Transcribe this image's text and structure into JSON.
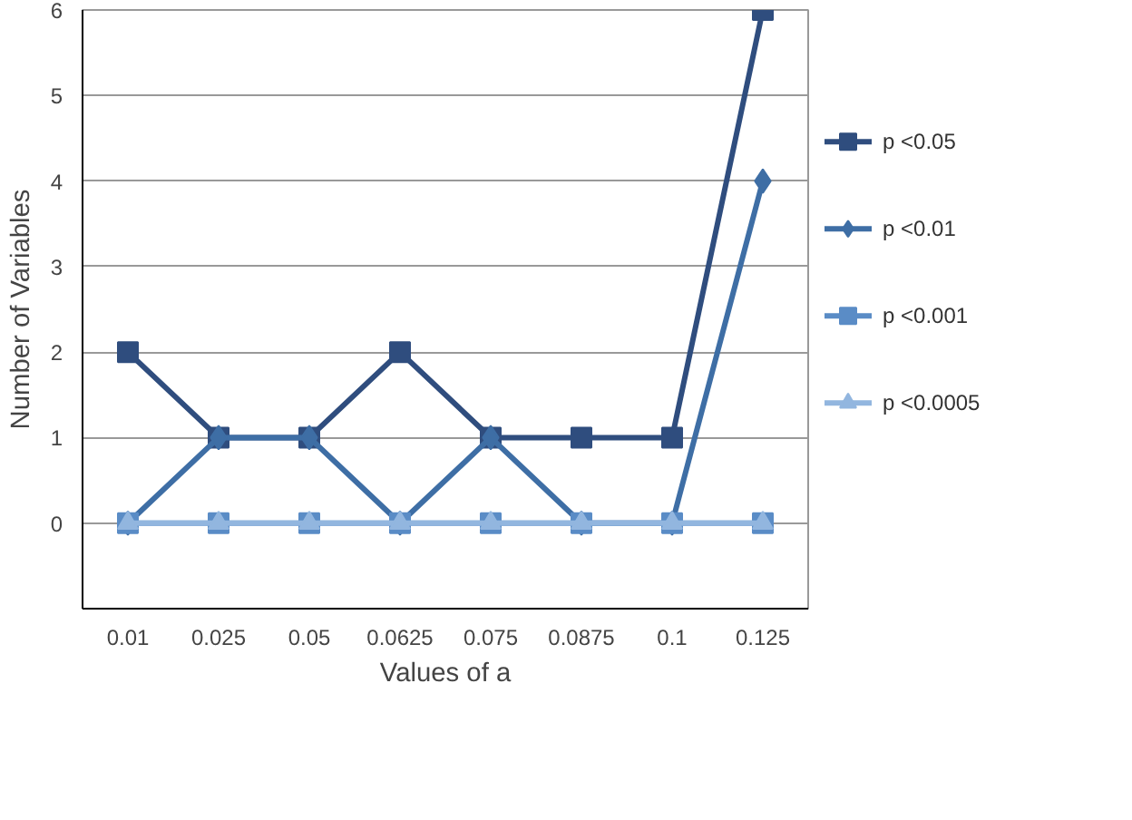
{
  "chart_data": {
    "type": "line",
    "xlabel": "Values of a",
    "ylabel": "Number of Variables",
    "categories": [
      "0.01",
      "0.025",
      "0.05",
      "0.0625",
      "0.075",
      "0.0875",
      "0.1",
      "0.125"
    ],
    "series": [
      {
        "name": "p <0.05",
        "color": "#2f4d7e",
        "marker": "square",
        "values": [
          2,
          1,
          1,
          2,
          1,
          1,
          1,
          6
        ]
      },
      {
        "name": "p <0.01",
        "color": "#3e6ea5",
        "marker": "diamond",
        "values": [
          0,
          1,
          1,
          0,
          1,
          0,
          0,
          4
        ]
      },
      {
        "name": "p <0.001",
        "color": "#5a8cc6",
        "marker": "square",
        "values": [
          0,
          0,
          0,
          0,
          0,
          0,
          0,
          0
        ]
      },
      {
        "name": "p <0.0005",
        "color": "#92b6df",
        "marker": "triangle",
        "values": [
          0,
          0,
          0,
          0,
          0,
          0,
          0,
          0
        ]
      }
    ],
    "ylim": [
      -1,
      6
    ],
    "yticks": [
      0,
      1,
      2,
      3,
      4,
      5,
      6
    ],
    "grid": "y",
    "legend": "right",
    "line_style": "solid"
  }
}
